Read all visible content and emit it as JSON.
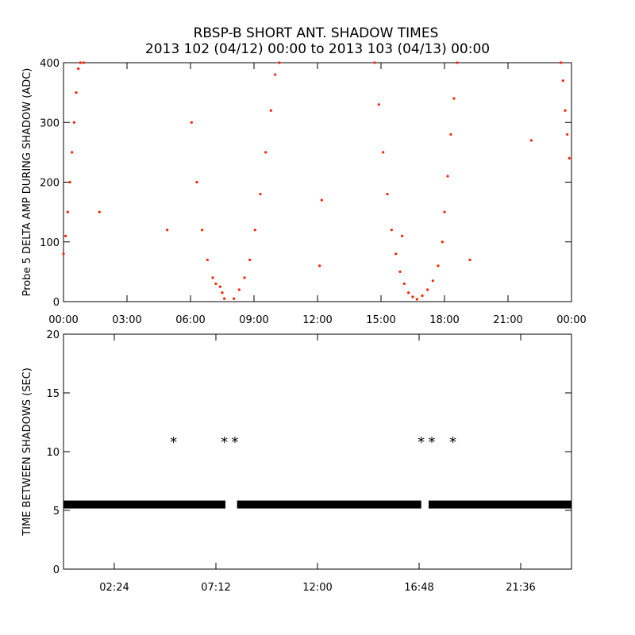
{
  "title": {
    "line1": "RBSP-B SHORT ANT. SHADOW TIMES",
    "line2": "2013 102 (04/12) 00:00 to 2013 103 (04/13) 00:00"
  },
  "colors": {
    "top_series": "#ff2000",
    "bottom_series": "#000000",
    "axes": "#000000"
  },
  "chart_data": [
    {
      "type": "scatter",
      "ylabel": "Probe 5 DELTA AMP DURING SHADOW (ADC)",
      "xlabel": "",
      "xlim_hours": [
        0,
        24
      ],
      "ylim": [
        0,
        400
      ],
      "x_tick_labels": [
        "00:00",
        "03:00",
        "06:00",
        "09:00",
        "12:00",
        "15:00",
        "18:00",
        "21:00",
        "00:00"
      ],
      "y_tick_labels": [
        "0",
        "100",
        "200",
        "300",
        "400"
      ],
      "marker": "dot",
      "series": [
        {
          "color": "#ff2000",
          "x_hours": [
            0.0,
            0.1,
            0.2,
            0.3,
            0.4,
            0.5,
            0.6,
            0.7,
            0.8,
            0.95,
            6.05,
            6.3,
            6.55,
            6.8,
            7.05,
            7.2,
            7.4,
            7.5,
            7.6,
            8.05,
            8.3,
            8.55,
            8.8,
            9.05,
            9.3,
            9.55,
            9.8,
            10.0,
            10.2,
            14.7,
            14.9,
            15.1,
            15.3,
            15.5,
            15.7,
            15.9,
            16.1,
            16.3,
            16.5,
            16.7,
            16.95,
            17.2,
            17.45,
            17.7,
            17.9,
            18.0,
            18.15,
            18.3,
            18.45,
            18.6,
            23.5,
            23.6,
            23.7,
            23.8,
            23.9,
            1.7,
            4.9,
            12.1,
            12.2,
            16.0,
            19.2,
            22.1
          ],
          "y": [
            80,
            110,
            150,
            200,
            250,
            300,
            350,
            390,
            400,
            400,
            300,
            200,
            120,
            70,
            40,
            30,
            25,
            15,
            5,
            5,
            20,
            40,
            70,
            120,
            180,
            250,
            320,
            380,
            400,
            400,
            330,
            250,
            180,
            120,
            80,
            50,
            30,
            15,
            8,
            4,
            10,
            20,
            35,
            60,
            100,
            150,
            210,
            280,
            340,
            400,
            400,
            370,
            320,
            280,
            240,
            150,
            120,
            60,
            170,
            110,
            70,
            270
          ]
        }
      ]
    },
    {
      "type": "scatter",
      "ylabel": "TIME BETWEEN SHADOWS (SEC)",
      "xlabel": "",
      "xlim_hours": [
        0,
        24
      ],
      "ylim": [
        0,
        20
      ],
      "x_tick_labels": [
        "02:24",
        "07:12",
        "12:00",
        "16:48",
        "21:36"
      ],
      "x_tick_hours": [
        2.4,
        7.2,
        12.0,
        16.8,
        21.6
      ],
      "y_tick_labels": [
        "0",
        "5",
        "10",
        "15",
        "20"
      ],
      "marker": "asterisk",
      "series": [
        {
          "color": "#000000",
          "segments_hours": [
            [
              0.0,
              7.65
            ],
            [
              8.2,
              16.9
            ],
            [
              17.25,
              24.0
            ]
          ],
          "segments_value": 5.5,
          "x_hours": [
            5.2,
            7.6,
            8.1,
            16.9,
            17.4,
            18.4
          ],
          "y": [
            11.0,
            11.0,
            11.0,
            11.0,
            11.0,
            11.0
          ]
        }
      ]
    }
  ]
}
